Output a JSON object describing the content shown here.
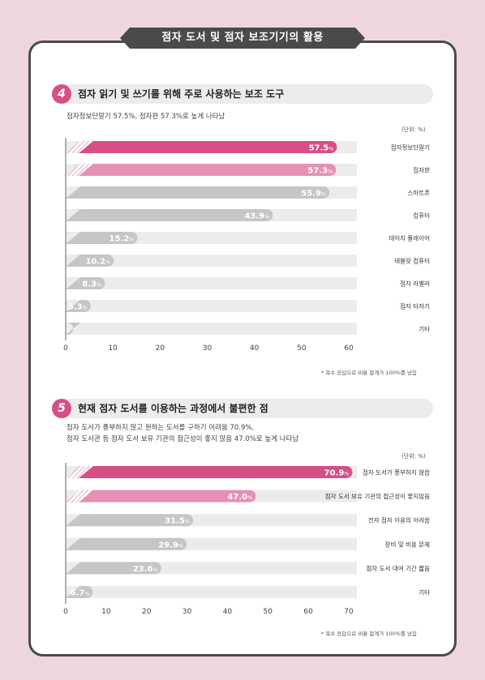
{
  "title": "점자 도서 및 점자 보조기기의 활용",
  "sections": [
    {
      "number": "4",
      "title": "점자 읽기 및 쓰기를 위해 주로 사용하는 보조 도구",
      "subtitle_lines": [
        "점자정보단말기 57.5%, 점자판 57.3%로 높게 나타남"
      ],
      "unit": "(단위: %)",
      "note": "* 복수 응답으로 비율 합계가 100%를 넘음"
    },
    {
      "number": "5",
      "title": "현재 점자 도서를 이용하는 과정에서 불편한 점",
      "subtitle_lines": [
        "점자 도서가 풍부하지 않고 원하는 도서를 구하기 어려움 70.9%,",
        "점자 도서관 등 점자 도서 보유 기관의 접근성이 좋지 않음 47.0%로 높게 나타남"
      ],
      "unit": "(단위: %)",
      "note": "* 복수 응답으로 비율 합계가 100%를 넘음"
    }
  ],
  "colors": {
    "top1": "#d64f87",
    "top2": "#e690b4",
    "rest": "#c6c6c6",
    "track": "#ececec",
    "badge": "#d64f87",
    "banner": "#4a4a4a"
  },
  "chart_data": [
    {
      "type": "bar",
      "orientation": "horizontal",
      "categories": [
        "점자정보단말기",
        "점자판",
        "스마트폰",
        "컴퓨터",
        "데이지 플레이어",
        "태블릿 컴퓨터",
        "점자 라벨러",
        "점자 타자기",
        "기타"
      ],
      "values": [
        57.5,
        57.3,
        55.9,
        43.9,
        15.2,
        10.2,
        8.3,
        5.3,
        1.6
      ],
      "value_labels": [
        "57.5%",
        "57.3%",
        "55.9%",
        "43.9%",
        "15.2%",
        "10.2%",
        "8.3%",
        "5.3%",
        "1.6%"
      ],
      "xticks": [
        "0",
        "10",
        "20",
        "30",
        "40",
        "50",
        "60"
      ],
      "xlim": [
        0,
        60
      ],
      "grid": false
    },
    {
      "type": "bar",
      "orientation": "horizontal",
      "categories": [
        "점자 도서가 풍부하지 않음",
        "점자 도서 보유 기관의 접근성이 좋지않음",
        "전자 점자 이용의 어려움",
        "장비 및 비용 문제",
        "점자 도서 대여 기간 짧음",
        "기타"
      ],
      "values": [
        70.9,
        47.0,
        31.5,
        29.9,
        23.6,
        6.7
      ],
      "value_labels": [
        "70.9%",
        "47.0%",
        "31.5%",
        "29.9%",
        "23.6%",
        "6.7%"
      ],
      "xticks": [
        "0",
        "10",
        "20",
        "30",
        "40",
        "50",
        "60",
        "70"
      ],
      "xlim": [
        0,
        70
      ],
      "grid": false
    }
  ]
}
